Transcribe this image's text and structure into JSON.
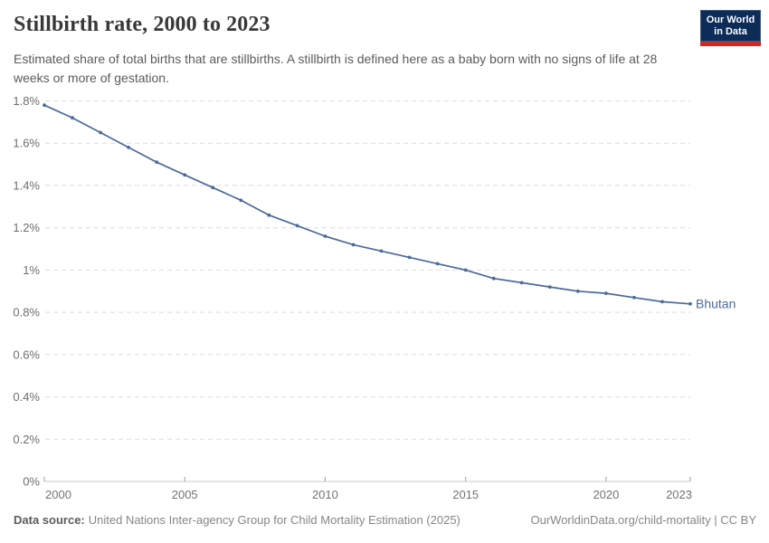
{
  "header": {
    "title": "Stillbirth rate, 2000 to 2023",
    "subtitle": "Estimated share of total births that are stillbirths. A stillbirth is defined here as a baby born with no signs of life at 28 weeks or more of gestation."
  },
  "logo": {
    "line1": "Our World",
    "line2": "in Data",
    "bg_color": "#0d2c58",
    "accent_color": "#cf2722"
  },
  "chart_data": {
    "type": "line",
    "title": "Stillbirth rate, 2000 to 2023",
    "xlabel": "",
    "ylabel": "",
    "unit": "%",
    "grid": "horizontal-dashed",
    "legend_position": "end-of-line-label",
    "xlim": [
      2000,
      2023
    ],
    "ylim": [
      0,
      1.8
    ],
    "xticks": [
      {
        "value": 2000,
        "label": "2000"
      },
      {
        "value": 2005,
        "label": "2005"
      },
      {
        "value": 2010,
        "label": "2010"
      },
      {
        "value": 2015,
        "label": "2015"
      },
      {
        "value": 2020,
        "label": "2020"
      },
      {
        "value": 2023,
        "label": "2023"
      }
    ],
    "yticks": [
      {
        "value": 0,
        "label": "0%"
      },
      {
        "value": 0.2,
        "label": "0.2%"
      },
      {
        "value": 0.4,
        "label": "0.4%"
      },
      {
        "value": 0.6,
        "label": "0.6%"
      },
      {
        "value": 0.8,
        "label": "0.8%"
      },
      {
        "value": 1,
        "label": "1%"
      },
      {
        "value": 1.2,
        "label": "1.2%"
      },
      {
        "value": 1.4,
        "label": "1.4%"
      },
      {
        "value": 1.6,
        "label": "1.6%"
      },
      {
        "value": 1.8,
        "label": "1.8%"
      }
    ],
    "series": [
      {
        "name": "Bhutan",
        "color": "#4C6A9C",
        "x": [
          2000,
          2001,
          2002,
          2003,
          2004,
          2005,
          2006,
          2007,
          2008,
          2009,
          2010,
          2011,
          2012,
          2013,
          2014,
          2015,
          2016,
          2017,
          2018,
          2019,
          2020,
          2021,
          2022,
          2023
        ],
        "values": [
          1.78,
          1.72,
          1.65,
          1.58,
          1.51,
          1.45,
          1.39,
          1.33,
          1.26,
          1.21,
          1.16,
          1.12,
          1.09,
          1.06,
          1.03,
          1.0,
          0.96,
          0.94,
          0.92,
          0.9,
          0.89,
          0.87,
          0.85,
          0.84
        ]
      }
    ]
  },
  "footer": {
    "source_label": "Data source:",
    "source_text": "United Nations Inter-agency Group for Child Mortality Estimation (2025)",
    "link_text": "OurWorldinData.org/child-mortality",
    "license_suffix": " | CC BY"
  }
}
